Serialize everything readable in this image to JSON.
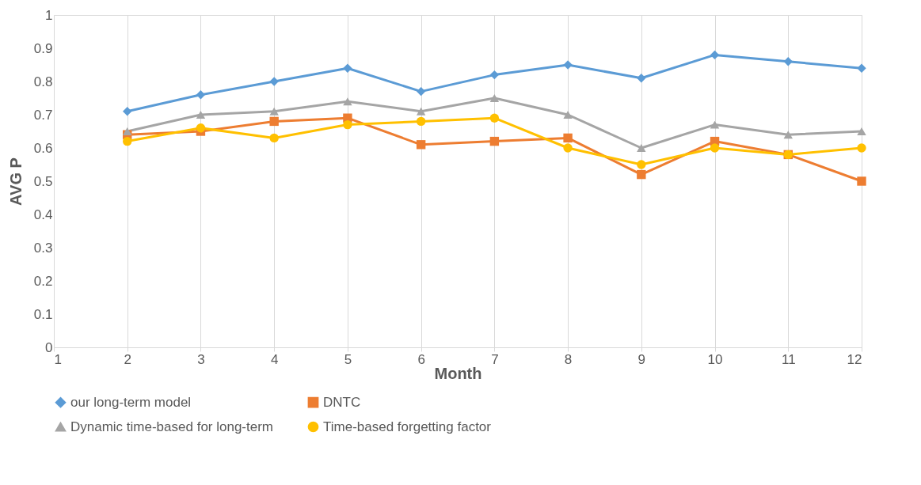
{
  "chart_data": {
    "type": "line",
    "xlabel": "Month",
    "ylabel": "AVG P",
    "x": [
      2,
      3,
      4,
      5,
      6,
      7,
      8,
      9,
      10,
      11,
      12
    ],
    "xlim": [
      1,
      12
    ],
    "xticks": [
      1,
      2,
      3,
      4,
      5,
      6,
      7,
      8,
      9,
      10,
      11,
      12
    ],
    "ylim": [
      0,
      1
    ],
    "yticks": [
      0,
      0.1,
      0.2,
      0.3,
      0.4,
      0.5,
      0.6,
      0.7,
      0.8,
      0.9,
      1
    ],
    "grid": "x",
    "legend": "bottom",
    "line_style": "solid",
    "series": [
      {
        "name": "our long-term model",
        "color": "#5b9bd5",
        "marker": "diamond",
        "values": [
          0.71,
          0.76,
          0.8,
          0.84,
          0.77,
          0.82,
          0.85,
          0.81,
          0.88,
          0.86,
          0.84
        ]
      },
      {
        "name": "DNTC",
        "color": "#ed7d31",
        "marker": "square",
        "values": [
          0.64,
          0.65,
          0.68,
          0.69,
          0.61,
          0.62,
          0.63,
          0.52,
          0.62,
          0.58,
          0.5
        ]
      },
      {
        "name": "Dynamic time-based for long-term",
        "color": "#a5a5a5",
        "marker": "triangle",
        "values": [
          0.65,
          0.7,
          0.71,
          0.74,
          0.71,
          0.75,
          0.7,
          0.6,
          0.67,
          0.64,
          0.65
        ]
      },
      {
        "name": "Time-based forgetting factor",
        "color": "#ffc000",
        "marker": "circle",
        "values": [
          0.62,
          0.66,
          0.63,
          0.67,
          0.68,
          0.69,
          0.6,
          0.55,
          0.6,
          0.58,
          0.6
        ]
      }
    ]
  }
}
